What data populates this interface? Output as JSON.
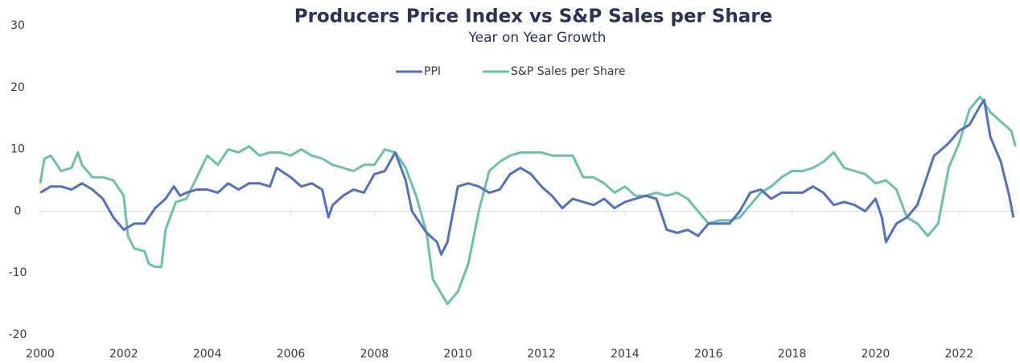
{
  "chart_data": {
    "type": "line",
    "title": "Producers Price Index vs S&P Sales per Share",
    "subtitle": "Year on Year Growth",
    "xlim": [
      2000,
      2023.4
    ],
    "xticks": [
      2000,
      2002,
      2004,
      2006,
      2008,
      2010,
      2012,
      2014,
      2016,
      2018,
      2020,
      2022
    ],
    "ylim": [
      -20,
      30
    ],
    "yticks": [
      -20,
      -10,
      0,
      10,
      20,
      30
    ],
    "grid": false,
    "legend": "top",
    "series": [
      {
        "name": "PPI",
        "color": "#5470c2",
        "x": [
          2000,
          2000.25,
          2000.5,
          2000.75,
          2001,
          2001.25,
          2001.5,
          2001.75,
          2002,
          2002.25,
          2002.5,
          2002.75,
          2003,
          2003.2,
          2003.35,
          2003.5,
          2003.75,
          2004,
          2004.25,
          2004.5,
          2004.75,
          2005,
          2005.25,
          2005.5,
          2005.66,
          2006,
          2006.25,
          2006.5,
          2006.75,
          2006.9,
          2007,
          2007.25,
          2007.5,
          2007.75,
          2008,
          2008.25,
          2008.5,
          2008.75,
          2008.9,
          2009,
          2009.25,
          2009.5,
          2009.6,
          2009.75,
          2010,
          2010.25,
          2010.5,
          2010.75,
          2011,
          2011.25,
          2011.5,
          2011.75,
          2012,
          2012.25,
          2012.5,
          2012.75,
          2013,
          2013.25,
          2013.5,
          2013.75,
          2014,
          2014.25,
          2014.5,
          2014.75,
          2015,
          2015.25,
          2015.5,
          2015.75,
          2016,
          2016.25,
          2016.5,
          2016.75,
          2017,
          2017.25,
          2017.5,
          2017.75,
          2018,
          2018.25,
          2018.5,
          2018.75,
          2019,
          2019.25,
          2019.5,
          2019.75,
          2020,
          2020.15,
          2020.25,
          2020.5,
          2020.75,
          2021,
          2021.25,
          2021.4,
          2021.5,
          2021.75,
          2022,
          2022.25,
          2022.5,
          2022.6,
          2022.75,
          2023,
          2023.2,
          2023.3
        ],
        "values": [
          3,
          4,
          4,
          3.5,
          4.5,
          3.5,
          2,
          -1,
          -3,
          -2,
          -2,
          0.5,
          2,
          4,
          2.5,
          3,
          3.5,
          3.5,
          3,
          4.5,
          3.5,
          4.5,
          4.5,
          4,
          7,
          5.5,
          4,
          4.5,
          3.5,
          -1,
          1,
          2.5,
          3.5,
          3,
          6,
          6.5,
          9.5,
          5,
          0,
          -1,
          -3.5,
          -5,
          -7,
          -5,
          4,
          4.5,
          4,
          3,
          3.5,
          6,
          7,
          6,
          4,
          2.5,
          0.5,
          2,
          1.5,
          1,
          2,
          0.5,
          1.5,
          2,
          2.5,
          2,
          -3,
          -3.5,
          -3,
          -4,
          -2,
          -2,
          -2,
          0,
          3,
          3.5,
          2,
          3,
          3,
          3,
          4,
          3,
          1,
          1.5,
          1,
          0,
          2,
          -1,
          -5,
          -2,
          -1,
          1,
          6,
          9,
          9.5,
          11,
          13,
          14,
          17,
          18,
          12,
          8,
          2.5,
          -1
        ]
      },
      {
        "name": "S&P Sales per Share",
        "color": "#6cc2a9",
        "x": [
          2000,
          2000.1,
          2000.25,
          2000.5,
          2000.75,
          2000.9,
          2001,
          2001.25,
          2001.5,
          2001.75,
          2002,
          2002.1,
          2002.25,
          2002.5,
          2002.6,
          2002.75,
          2002.9,
          2003,
          2003.25,
          2003.5,
          2003.75,
          2004,
          2004.25,
          2004.5,
          2004.75,
          2005,
          2005.25,
          2005.5,
          2005.75,
          2006,
          2006.25,
          2006.5,
          2006.75,
          2007,
          2007.25,
          2007.5,
          2007.75,
          2008,
          2008.25,
          2008.5,
          2008.75,
          2009,
          2009.25,
          2009.4,
          2009.75,
          2010,
          2010.25,
          2010.5,
          2010.75,
          2011,
          2011.25,
          2011.5,
          2011.75,
          2012,
          2012.25,
          2012.5,
          2012.75,
          2013,
          2013.25,
          2013.5,
          2013.75,
          2014,
          2014.25,
          2014.5,
          2014.75,
          2015,
          2015.25,
          2015.5,
          2015.75,
          2016,
          2016.25,
          2016.5,
          2016.75,
          2017,
          2017.25,
          2017.5,
          2017.75,
          2018,
          2018.25,
          2018.5,
          2018.75,
          2019,
          2019.25,
          2019.5,
          2019.75,
          2020,
          2020.25,
          2020.5,
          2020.75,
          2021,
          2021.25,
          2021.5,
          2021.75,
          2022,
          2022.25,
          2022.5,
          2022.75,
          2023,
          2023.25,
          2023.35
        ],
        "values": [
          4.5,
          8.5,
          9,
          6.5,
          7,
          9.5,
          7.5,
          5.5,
          5.5,
          5,
          2.5,
          -4,
          -6,
          -6.5,
          -8.5,
          -9,
          -9,
          -3,
          1.5,
          2,
          5.5,
          9,
          7.5,
          10,
          9.5,
          10.5,
          9,
          9.5,
          9.5,
          9,
          10,
          9,
          8.5,
          7.5,
          7,
          6.5,
          7.5,
          7.5,
          10,
          9.5,
          7,
          2.5,
          -3.5,
          -11,
          -15,
          -13,
          -8.5,
          0,
          6.5,
          8,
          9,
          9.5,
          9.5,
          9.5,
          9,
          9,
          9,
          5.5,
          5.5,
          4.5,
          3,
          4,
          2.5,
          2.5,
          3,
          2.5,
          3,
          2,
          0,
          -2,
          -1.5,
          -1.5,
          -1,
          1,
          3,
          4,
          5.5,
          6.5,
          6.5,
          7,
          8,
          9.5,
          7,
          6.5,
          6,
          4.5,
          5,
          3.5,
          -1,
          -2,
          -4,
          -2,
          7,
          11,
          16.5,
          18.5,
          16,
          14.5,
          13,
          10.5
        ]
      }
    ]
  }
}
